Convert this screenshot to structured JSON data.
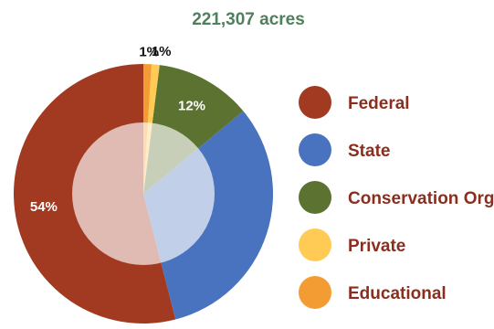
{
  "chart_data": {
    "type": "pie",
    "title": "221,307 acres",
    "slices": [
      {
        "label": "Federal",
        "value": 54,
        "display": "54%",
        "color": "#a23a22"
      },
      {
        "label": "State",
        "value": 32,
        "display": "",
        "color": "#4a73bf"
      },
      {
        "label": "Conservation Org.",
        "value": 12,
        "display": "12%",
        "color": "#5c7230"
      },
      {
        "label": "Private",
        "value": 1,
        "display": "1%",
        "color": "#ffcb55"
      },
      {
        "label": "Educational",
        "value": 1,
        "display": "1%",
        "color": "#f39c33"
      }
    ],
    "legend_position": "right"
  }
}
